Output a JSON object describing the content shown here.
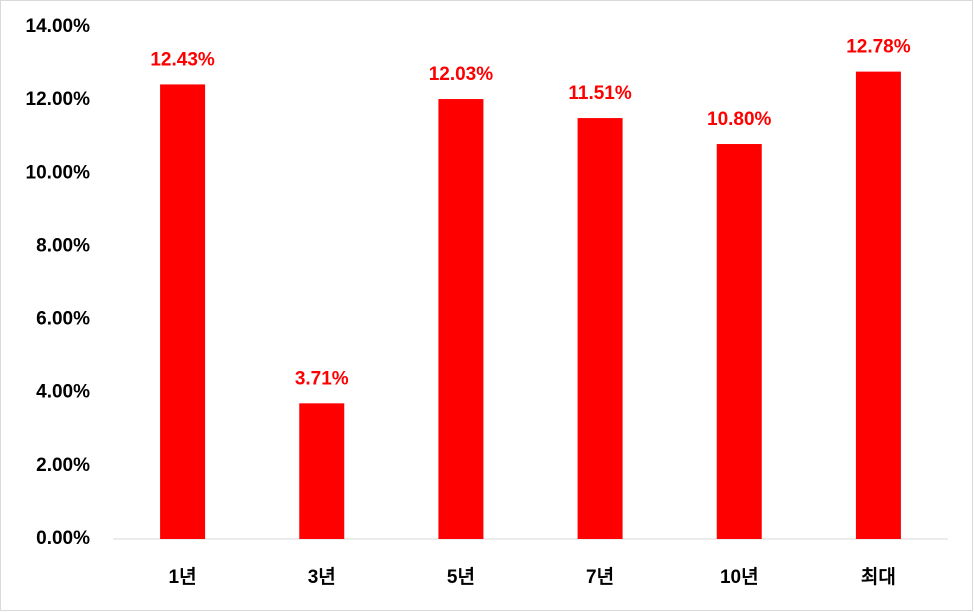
{
  "chart_data": {
    "type": "bar",
    "categories": [
      "1년",
      "3년",
      "5년",
      "7년",
      "10년",
      "최대"
    ],
    "values": [
      12.43,
      3.71,
      12.03,
      11.51,
      10.8,
      12.78
    ],
    "value_labels": [
      "12.43%",
      "3.71%",
      "12.03%",
      "11.51%",
      "10.80%",
      "12.78%"
    ],
    "color": "#ff0000",
    "ylim": [
      0,
      14
    ],
    "yticks": [
      {
        "value": 0,
        "label": "0.00%"
      },
      {
        "value": 2,
        "label": "2.00%"
      },
      {
        "value": 4,
        "label": "4.00%"
      },
      {
        "value": 6,
        "label": "6.00%"
      },
      {
        "value": 8,
        "label": "8.00%"
      },
      {
        "value": 10,
        "label": "10.00%"
      },
      {
        "value": 12,
        "label": "12.00%"
      },
      {
        "value": 14,
        "label": "14.00%"
      }
    ],
    "grid": false
  }
}
